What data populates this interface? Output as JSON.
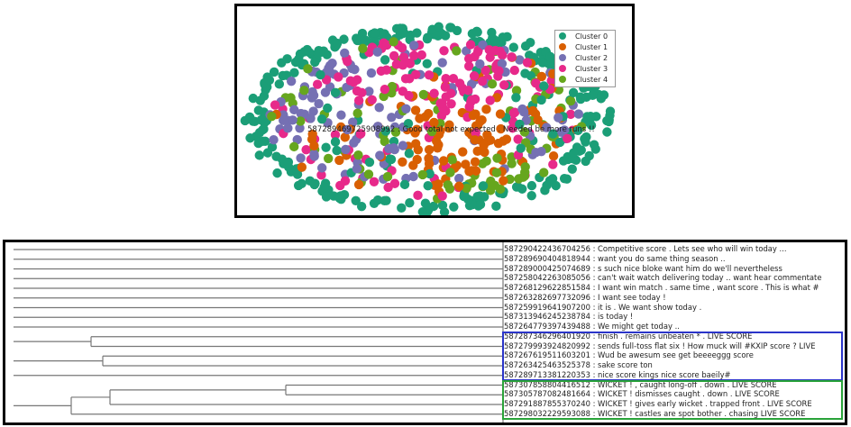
{
  "chart_data": [
    {
      "type": "scatter",
      "legend": {
        "placement": "top-right",
        "entries": [
          {
            "name": "Cluster 0",
            "color": "#1b9e77"
          },
          {
            "name": "Cluster 1",
            "color": "#d95f02"
          },
          {
            "name": "Cluster 2",
            "color": "#7570b3"
          },
          {
            "name": "Cluster 3",
            "color": "#e7298a"
          },
          {
            "name": "Cluster 4",
            "color": "#66a61e"
          }
        ]
      },
      "annotation": "587289469725908992 : Good total not expected . Needed be more runs !!",
      "axes": "hidden",
      "grid": false
    },
    {
      "type": "dendrogram",
      "orientation": "left",
      "leaves": [
        "587290422436704256 : Competitive score . Lets see who will win today ...",
        "587289690404818944 : want you do same thing season ..",
        "587289000425074689 : s such nice bloke want him do we'll nevertheless",
        "587258042263085056 : can't wait watch delivering today .. want hear commentate",
        "587268129622851584 : I want win match . same time , want score . This is what #",
        "587263282697732096 : I want see today !",
        "587259919641907200 : it is . We want show today .",
        "587313946245238784 : is today !",
        "587264779397439488 : We might get today ..",
        "587287346296401920 : finish . remains unbeaten * . LIVE SCORE",
        "587279993924820992 : sends full-toss flat six ! How muck will #KXIP score ? LIVE",
        "587267619511603201 : Wud be awesum see get beeeeggg score",
        "587263425463525378 : sake score ton",
        "587289713381220353 : nice score kings nice score baeily#",
        "587307858804416512 : WICKET ! , caught long-off . down . LIVE SCORE",
        "587305787082481664 : WICKET ! dismisses caught . down . LIVE SCORE",
        "587291887855370240 : WICKET ! gives early wicket . trapped front . LIVE SCORE",
        "587298032229593088 : WICKET ! castles are spot bother . chasing LIVE SCORE"
      ],
      "highlight_groups": [
        {
          "color": "#2b35c9",
          "leaves": [
            9,
            10,
            11,
            12,
            13
          ]
        },
        {
          "color": "#2aa33a",
          "leaves": [
            14,
            15,
            16,
            17
          ]
        }
      ],
      "line_color": "#777777"
    }
  ]
}
